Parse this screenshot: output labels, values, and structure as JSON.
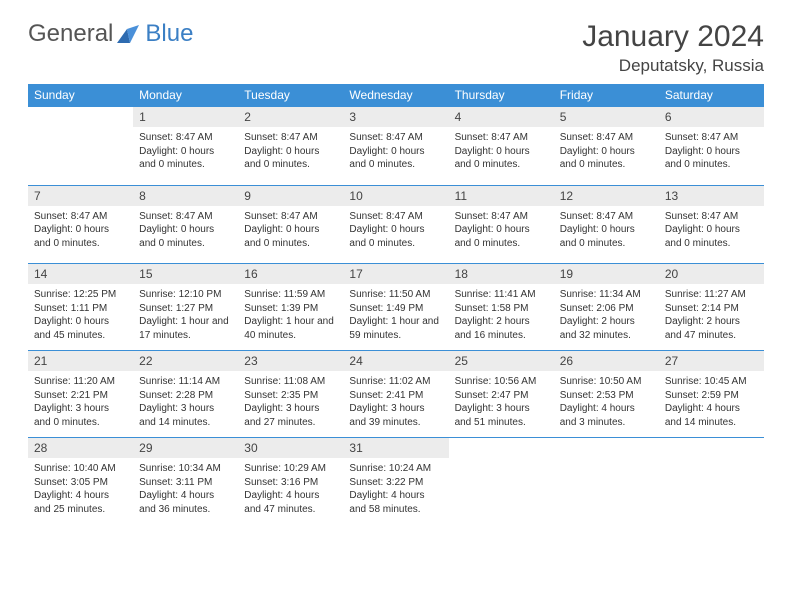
{
  "logo": {
    "text1": "General",
    "text2": "Blue"
  },
  "title": "January 2024",
  "location": "Deputatsky, Russia",
  "colors": {
    "header_bg": "#3b8fd6",
    "header_text": "#ffffff",
    "daynum_bg": "#ececec",
    "border": "#3b8fd6",
    "logo_gray": "#555555",
    "logo_blue": "#3b7fc4"
  },
  "weekdays": [
    "Sunday",
    "Monday",
    "Tuesday",
    "Wednesday",
    "Thursday",
    "Friday",
    "Saturday"
  ],
  "weeks": [
    {
      "nums": [
        "",
        "1",
        "2",
        "3",
        "4",
        "5",
        "6"
      ],
      "cells": [
        {
          "l1": "",
          "l2": "",
          "l3": ""
        },
        {
          "l1": "Sunset: 8:47 AM",
          "l2": "Daylight: 0 hours",
          "l3": "and 0 minutes."
        },
        {
          "l1": "Sunset: 8:47 AM",
          "l2": "Daylight: 0 hours",
          "l3": "and 0 minutes."
        },
        {
          "l1": "Sunset: 8:47 AM",
          "l2": "Daylight: 0 hours",
          "l3": "and 0 minutes."
        },
        {
          "l1": "Sunset: 8:47 AM",
          "l2": "Daylight: 0 hours",
          "l3": "and 0 minutes."
        },
        {
          "l1": "Sunset: 8:47 AM",
          "l2": "Daylight: 0 hours",
          "l3": "and 0 minutes."
        },
        {
          "l1": "Sunset: 8:47 AM",
          "l2": "Daylight: 0 hours",
          "l3": "and 0 minutes."
        }
      ]
    },
    {
      "nums": [
        "7",
        "8",
        "9",
        "10",
        "11",
        "12",
        "13"
      ],
      "cells": [
        {
          "l1": "Sunset: 8:47 AM",
          "l2": "Daylight: 0 hours",
          "l3": "and 0 minutes."
        },
        {
          "l1": "Sunset: 8:47 AM",
          "l2": "Daylight: 0 hours",
          "l3": "and 0 minutes."
        },
        {
          "l1": "Sunset: 8:47 AM",
          "l2": "Daylight: 0 hours",
          "l3": "and 0 minutes."
        },
        {
          "l1": "Sunset: 8:47 AM",
          "l2": "Daylight: 0 hours",
          "l3": "and 0 minutes."
        },
        {
          "l1": "Sunset: 8:47 AM",
          "l2": "Daylight: 0 hours",
          "l3": "and 0 minutes."
        },
        {
          "l1": "Sunset: 8:47 AM",
          "l2": "Daylight: 0 hours",
          "l3": "and 0 minutes."
        },
        {
          "l1": "Sunset: 8:47 AM",
          "l2": "Daylight: 0 hours",
          "l3": "and 0 minutes."
        }
      ]
    },
    {
      "nums": [
        "14",
        "15",
        "16",
        "17",
        "18",
        "19",
        "20"
      ],
      "cells": [
        {
          "l1": "Sunrise: 12:25 PM",
          "l2": "Sunset: 1:11 PM",
          "l3": "Daylight: 0 hours",
          "l4": "and 45 minutes."
        },
        {
          "l1": "Sunrise: 12:10 PM",
          "l2": "Sunset: 1:27 PM",
          "l3": "Daylight: 1 hour and",
          "l4": "17 minutes."
        },
        {
          "l1": "Sunrise: 11:59 AM",
          "l2": "Sunset: 1:39 PM",
          "l3": "Daylight: 1 hour and",
          "l4": "40 minutes."
        },
        {
          "l1": "Sunrise: 11:50 AM",
          "l2": "Sunset: 1:49 PM",
          "l3": "Daylight: 1 hour and",
          "l4": "59 minutes."
        },
        {
          "l1": "Sunrise: 11:41 AM",
          "l2": "Sunset: 1:58 PM",
          "l3": "Daylight: 2 hours",
          "l4": "and 16 minutes."
        },
        {
          "l1": "Sunrise: 11:34 AM",
          "l2": "Sunset: 2:06 PM",
          "l3": "Daylight: 2 hours",
          "l4": "and 32 minutes."
        },
        {
          "l1": "Sunrise: 11:27 AM",
          "l2": "Sunset: 2:14 PM",
          "l3": "Daylight: 2 hours",
          "l4": "and 47 minutes."
        }
      ]
    },
    {
      "nums": [
        "21",
        "22",
        "23",
        "24",
        "25",
        "26",
        "27"
      ],
      "cells": [
        {
          "l1": "Sunrise: 11:20 AM",
          "l2": "Sunset: 2:21 PM",
          "l3": "Daylight: 3 hours",
          "l4": "and 0 minutes."
        },
        {
          "l1": "Sunrise: 11:14 AM",
          "l2": "Sunset: 2:28 PM",
          "l3": "Daylight: 3 hours",
          "l4": "and 14 minutes."
        },
        {
          "l1": "Sunrise: 11:08 AM",
          "l2": "Sunset: 2:35 PM",
          "l3": "Daylight: 3 hours",
          "l4": "and 27 minutes."
        },
        {
          "l1": "Sunrise: 11:02 AM",
          "l2": "Sunset: 2:41 PM",
          "l3": "Daylight: 3 hours",
          "l4": "and 39 minutes."
        },
        {
          "l1": "Sunrise: 10:56 AM",
          "l2": "Sunset: 2:47 PM",
          "l3": "Daylight: 3 hours",
          "l4": "and 51 minutes."
        },
        {
          "l1": "Sunrise: 10:50 AM",
          "l2": "Sunset: 2:53 PM",
          "l3": "Daylight: 4 hours",
          "l4": "and 3 minutes."
        },
        {
          "l1": "Sunrise: 10:45 AM",
          "l2": "Sunset: 2:59 PM",
          "l3": "Daylight: 4 hours",
          "l4": "and 14 minutes."
        }
      ]
    },
    {
      "nums": [
        "28",
        "29",
        "30",
        "31",
        "",
        "",
        ""
      ],
      "cells": [
        {
          "l1": "Sunrise: 10:40 AM",
          "l2": "Sunset: 3:05 PM",
          "l3": "Daylight: 4 hours",
          "l4": "and 25 minutes."
        },
        {
          "l1": "Sunrise: 10:34 AM",
          "l2": "Sunset: 3:11 PM",
          "l3": "Daylight: 4 hours",
          "l4": "and 36 minutes."
        },
        {
          "l1": "Sunrise: 10:29 AM",
          "l2": "Sunset: 3:16 PM",
          "l3": "Daylight: 4 hours",
          "l4": "and 47 minutes."
        },
        {
          "l1": "Sunrise: 10:24 AM",
          "l2": "Sunset: 3:22 PM",
          "l3": "Daylight: 4 hours",
          "l4": "and 58 minutes."
        },
        {
          "l1": "",
          "l2": "",
          "l3": "",
          "l4": ""
        },
        {
          "l1": "",
          "l2": "",
          "l3": "",
          "l4": ""
        },
        {
          "l1": "",
          "l2": "",
          "l3": "",
          "l4": ""
        }
      ]
    }
  ]
}
